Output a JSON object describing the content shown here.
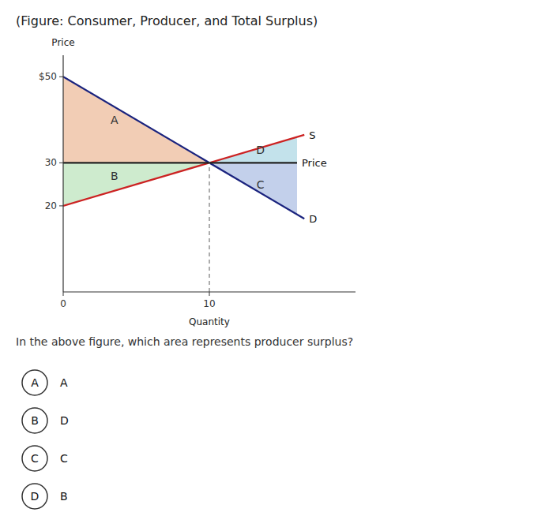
{
  "chart_data": {
    "type": "line",
    "title": "(Figure: Consumer, Producer, and Total Surplus)",
    "x_label": "Quantity",
    "y_label": "Price",
    "xlim": [
      0,
      20
    ],
    "ylim": [
      0,
      55
    ],
    "xticks": [
      0,
      10
    ],
    "yticks": [
      20,
      30,
      {
        "value": 50,
        "label": "$50"
      }
    ],
    "grid": false,
    "regions": [
      {
        "name": "A",
        "color": "#f0c4a8",
        "x": [
          0,
          0,
          10
        ],
        "values": [
          50,
          30,
          30
        ]
      },
      {
        "name": "B",
        "color": "#c5e8c5",
        "x": [
          0,
          0,
          10
        ],
        "values": [
          20,
          30,
          30
        ]
      },
      {
        "name": "D",
        "color": "#b8dde8",
        "x": [
          10,
          16,
          16
        ],
        "values": [
          30,
          36,
          30
        ]
      },
      {
        "name": "C",
        "color": "#b8c8e8",
        "x": [
          10,
          16,
          16
        ],
        "values": [
          30,
          30,
          18
        ]
      }
    ],
    "series": [
      {
        "name": "S",
        "color": "#cc2222",
        "line_style": "solid",
        "x": [
          0,
          16.5
        ],
        "values": [
          20,
          36.5
        ]
      },
      {
        "name": "D",
        "color": "#1a237e",
        "line_style": "solid",
        "x": [
          0,
          16.5
        ],
        "values": [
          50,
          17
        ]
      },
      {
        "name": "Price",
        "color": "#222222",
        "line_style": "solid",
        "x": [
          0,
          16
        ],
        "values": [
          30,
          30
        ]
      },
      {
        "color": "#777777",
        "line_style": "dashed",
        "x": [
          10,
          10
        ],
        "values": [
          0,
          30
        ]
      }
    ],
    "annotations": [
      {
        "text": "A",
        "x": 3.5,
        "y": 40
      },
      {
        "text": "B",
        "x": 3.5,
        "y": 27
      },
      {
        "text": "D",
        "x": 13.5,
        "y": 33
      },
      {
        "text": "C",
        "x": 13.5,
        "y": 25
      }
    ],
    "question": "In the above figure, which area represents producer surplus?",
    "choices": [
      {
        "letter": "A",
        "text": "A"
      },
      {
        "letter": "B",
        "text": "D"
      },
      {
        "letter": "C",
        "text": "C"
      },
      {
        "letter": "D",
        "text": "B"
      }
    ]
  }
}
